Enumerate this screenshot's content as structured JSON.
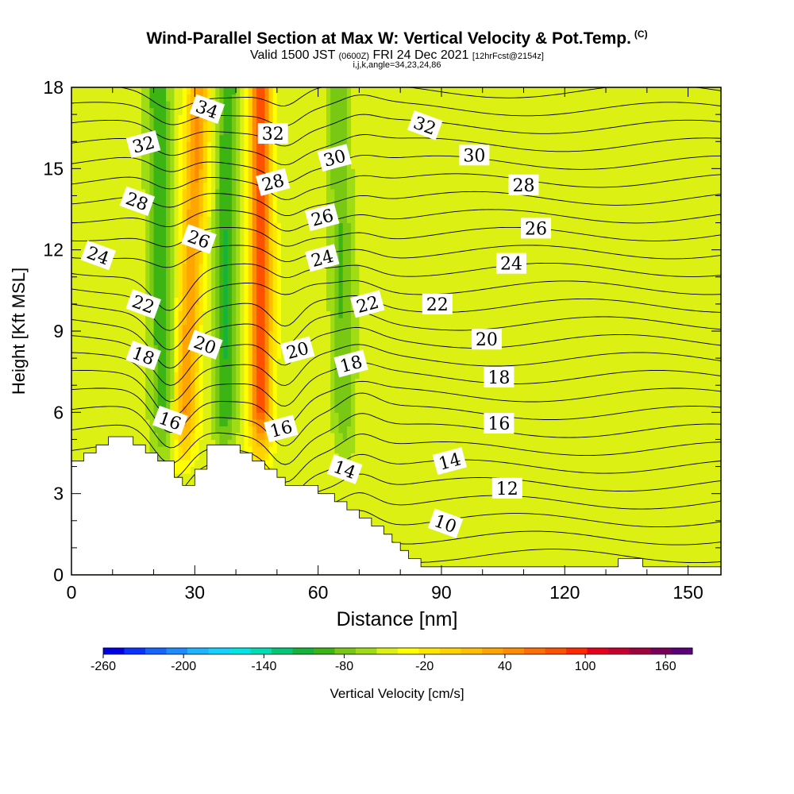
{
  "title": "Wind-Parallel Section at Max W: Vertical Velocity & Pot.Temp.",
  "title_mark": "(C)",
  "subtitle": {
    "valid": "Valid 1500 JST",
    "utc": "(0600Z)",
    "date": "FRI 24 Dec 2021",
    "fcst": "[12hrFcst@2154z]"
  },
  "params": "i,j,k,angle=34,23,24,86",
  "chart_data": {
    "type": "heatmap",
    "title": "Wind-Parallel Section at Max W: Vertical Velocity & Pot.Temp.",
    "xlabel": "Distance [nm]",
    "ylabel": "Height [Kft MSL]",
    "xlim": [
      0,
      158
    ],
    "ylim": [
      0,
      18
    ],
    "xticks": [
      0,
      30,
      60,
      90,
      120,
      150
    ],
    "yticks": [
      0,
      3,
      6,
      9,
      12,
      15,
      18
    ],
    "colorbar": {
      "label": "Vertical Velocity [cm/s]",
      "min": -260,
      "max": 180,
      "step": 20,
      "tick_labels": [
        "-260",
        "-200",
        "-140",
        "-80",
        "-20",
        "40",
        "100",
        "160"
      ],
      "colors": [
        "#0000e6",
        "#0a32ff",
        "#1464ff",
        "#1e8cff",
        "#1eb4ff",
        "#14d2ff",
        "#00e6e6",
        "#00dcb4",
        "#00c878",
        "#14b43c",
        "#3cb414",
        "#78c814",
        "#a0dc14",
        "#dcf014",
        "#ffff00",
        "#ffe600",
        "#ffd200",
        "#ffbe00",
        "#ffa500",
        "#ff8c00",
        "#ff6e00",
        "#ff5000",
        "#ff2800",
        "#e6001e",
        "#c80032",
        "#a0003c",
        "#78005a",
        "#5a0078"
      ]
    },
    "velocity_features": [
      {
        "name": "updraft",
        "x_bottom": 26,
        "x_top": 31,
        "w": 110
      },
      {
        "name": "downdraft",
        "x_bottom": 23,
        "x_top": 21,
        "w": -70
      },
      {
        "name": "downdraft",
        "x_bottom": 37,
        "x_top": 38,
        "w": -70
      },
      {
        "name": "updraft",
        "x_bottom": 46,
        "x_top": 46,
        "w": 160
      },
      {
        "name": "downdraft",
        "x_bottom": 67,
        "x_top": 65,
        "w": -50
      }
    ],
    "theta_contours": {
      "min": 9,
      "max": 35,
      "step": 1,
      "labels": [
        {
          "text": "34",
          "x": 33,
          "y": 17.2
        },
        {
          "text": "32",
          "x": 17.5,
          "y": 15.9
        },
        {
          "text": "32",
          "x": 49,
          "y": 16.3
        },
        {
          "text": "32",
          "x": 86,
          "y": 16.6
        },
        {
          "text": "30",
          "x": 64,
          "y": 15.4
        },
        {
          "text": "30",
          "x": 98,
          "y": 15.5
        },
        {
          "text": "28",
          "x": 16,
          "y": 13.8
        },
        {
          "text": "28",
          "x": 49,
          "y": 14.5
        },
        {
          "text": "28",
          "x": 110,
          "y": 14.4
        },
        {
          "text": "26",
          "x": 31,
          "y": 12.4
        },
        {
          "text": "26",
          "x": 61,
          "y": 13.2
        },
        {
          "text": "26",
          "x": 113,
          "y": 12.8
        },
        {
          "text": "24",
          "x": 6.5,
          "y": 11.8
        },
        {
          "text": "24",
          "x": 61,
          "y": 11.7
        },
        {
          "text": "24",
          "x": 107,
          "y": 11.5
        },
        {
          "text": "22",
          "x": 17.5,
          "y": 10.0
        },
        {
          "text": "22",
          "x": 72,
          "y": 10.0
        },
        {
          "text": "22",
          "x": 89,
          "y": 10.0
        },
        {
          "text": "20",
          "x": 32.5,
          "y": 8.5
        },
        {
          "text": "20",
          "x": 55,
          "y": 8.3
        },
        {
          "text": "20",
          "x": 101,
          "y": 8.7
        },
        {
          "text": "18",
          "x": 17.5,
          "y": 8.1
        },
        {
          "text": "18",
          "x": 68,
          "y": 7.8
        },
        {
          "text": "18",
          "x": 104,
          "y": 7.3
        },
        {
          "text": "16",
          "x": 24,
          "y": 5.7
        },
        {
          "text": "16",
          "x": 51,
          "y": 5.4
        },
        {
          "text": "16",
          "x": 104,
          "y": 5.6
        },
        {
          "text": "14",
          "x": 66.5,
          "y": 3.9
        },
        {
          "text": "14",
          "x": 92,
          "y": 4.2
        },
        {
          "text": "12",
          "x": 106,
          "y": 3.2
        },
        {
          "text": "10",
          "x": 91,
          "y": 1.9
        }
      ]
    },
    "terrain": [
      [
        0,
        4.2
      ],
      [
        3,
        4.2
      ],
      [
        3,
        4.5
      ],
      [
        6,
        4.5
      ],
      [
        6,
        4.8
      ],
      [
        9,
        4.8
      ],
      [
        9,
        5.1
      ],
      [
        15,
        5.1
      ],
      [
        15,
        4.8
      ],
      [
        18,
        4.8
      ],
      [
        18,
        4.5
      ],
      [
        21,
        4.5
      ],
      [
        21,
        4.2
      ],
      [
        25,
        4.2
      ],
      [
        25,
        3.6
      ],
      [
        27,
        3.6
      ],
      [
        27,
        3.3
      ],
      [
        30,
        3.3
      ],
      [
        30,
        3.9
      ],
      [
        33,
        3.9
      ],
      [
        33,
        4.8
      ],
      [
        41,
        4.8
      ],
      [
        41,
        4.5
      ],
      [
        44,
        4.5
      ],
      [
        44,
        4.2
      ],
      [
        47,
        4.2
      ],
      [
        47,
        3.9
      ],
      [
        50,
        3.9
      ],
      [
        50,
        3.6
      ],
      [
        52,
        3.6
      ],
      [
        52,
        3.3
      ],
      [
        60,
        3.3
      ],
      [
        60,
        3.0
      ],
      [
        64,
        3.0
      ],
      [
        64,
        2.7
      ],
      [
        67,
        2.7
      ],
      [
        67,
        2.4
      ],
      [
        70,
        2.4
      ],
      [
        70,
        2.1
      ],
      [
        73,
        2.1
      ],
      [
        73,
        1.8
      ],
      [
        76,
        1.8
      ],
      [
        76,
        1.5
      ],
      [
        78,
        1.5
      ],
      [
        78,
        1.2
      ],
      [
        80,
        1.2
      ],
      [
        80,
        0.9
      ],
      [
        82,
        0.9
      ],
      [
        82,
        0.6
      ],
      [
        85,
        0.6
      ],
      [
        85,
        0.3
      ],
      [
        133,
        0.3
      ],
      [
        133,
        0.6
      ],
      [
        139,
        0.6
      ],
      [
        139,
        0.3
      ],
      [
        158,
        0.3
      ],
      [
        158,
        0
      ],
      [
        0,
        0
      ]
    ]
  }
}
